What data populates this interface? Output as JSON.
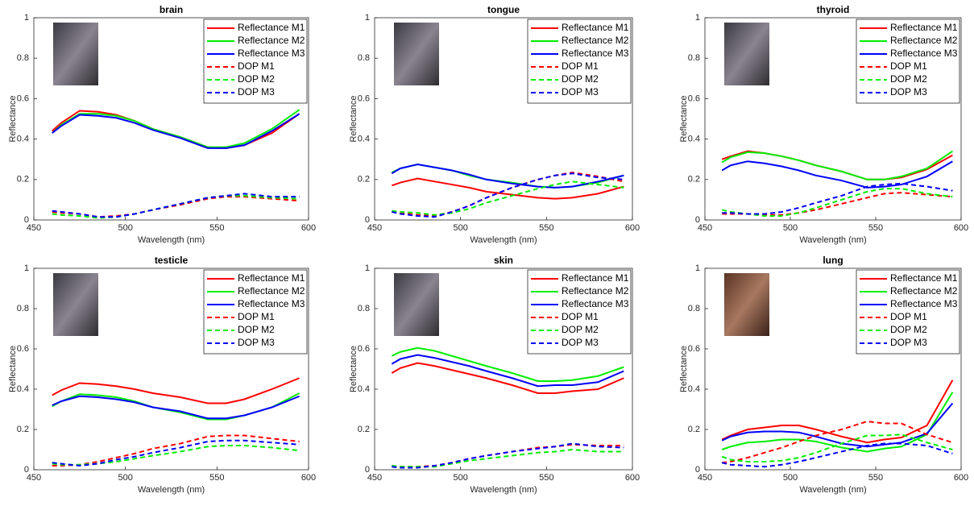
{
  "chart_data": [
    {
      "type": "line",
      "title": "brain",
      "xlabel": "Wavelength (nm)",
      "ylabel": "Reflectance",
      "x": [
        460,
        465,
        475,
        485,
        495,
        505,
        515,
        530,
        545,
        555,
        565,
        580,
        595
      ],
      "xlim": [
        450,
        600
      ],
      "xticks": [
        450,
        500,
        550,
        600
      ],
      "ylim": [
        0,
        1
      ],
      "yticks": [
        0,
        0.2,
        0.4,
        0.6,
        0.8,
        1
      ],
      "legend": "upper right",
      "series": [
        {
          "name": "Reflectance M1",
          "color": "#ff0000",
          "style": "solid",
          "values": [
            0.44,
            0.48,
            0.54,
            0.535,
            0.52,
            0.49,
            0.45,
            0.41,
            0.36,
            0.355,
            0.37,
            0.43,
            0.525
          ]
        },
        {
          "name": "Reflectance M2",
          "color": "#00ee00",
          "style": "solid",
          "values": [
            0.43,
            0.47,
            0.525,
            0.525,
            0.515,
            0.49,
            0.45,
            0.41,
            0.36,
            0.36,
            0.38,
            0.45,
            0.545
          ]
        },
        {
          "name": "Reflectance M3",
          "color": "#0000ff",
          "style": "solid",
          "values": [
            0.43,
            0.465,
            0.52,
            0.515,
            0.505,
            0.48,
            0.445,
            0.405,
            0.355,
            0.355,
            0.37,
            0.44,
            0.525
          ]
        },
        {
          "name": "DOP M1",
          "color": "#ff0000",
          "style": "dashed",
          "values": [
            0.04,
            0.035,
            0.03,
            0.015,
            0.02,
            0.03,
            0.05,
            0.075,
            0.105,
            0.115,
            0.115,
            0.105,
            0.095
          ]
        },
        {
          "name": "DOP M2",
          "color": "#00ee00",
          "style": "dashed",
          "values": [
            0.03,
            0.025,
            0.02,
            0.01,
            0.015,
            0.03,
            0.05,
            0.08,
            0.11,
            0.12,
            0.12,
            0.11,
            0.105
          ]
        },
        {
          "name": "DOP M3",
          "color": "#0000ff",
          "style": "dashed",
          "values": [
            0.045,
            0.04,
            0.03,
            0.015,
            0.015,
            0.03,
            0.05,
            0.08,
            0.11,
            0.12,
            0.13,
            0.115,
            0.115
          ]
        }
      ]
    },
    {
      "type": "line",
      "title": "tongue",
      "xlabel": "Wavelength (nm)",
      "ylabel": "Reflectance",
      "x": [
        460,
        465,
        475,
        485,
        495,
        505,
        515,
        530,
        545,
        555,
        565,
        580,
        595
      ],
      "xlim": [
        450,
        600
      ],
      "xticks": [
        450,
        500,
        550,
        600
      ],
      "ylim": [
        0,
        1
      ],
      "yticks": [
        0,
        0.2,
        0.4,
        0.6,
        0.8,
        1
      ],
      "legend": "upper right",
      "series": [
        {
          "name": "Reflectance M1",
          "color": "#ff0000",
          "style": "solid",
          "values": [
            0.17,
            0.185,
            0.205,
            0.19,
            0.175,
            0.16,
            0.14,
            0.125,
            0.11,
            0.105,
            0.11,
            0.13,
            0.165
          ]
        },
        {
          "name": "Reflectance M2",
          "color": "#00ee00",
          "style": "solid",
          "values": [
            0.235,
            0.255,
            0.275,
            0.26,
            0.245,
            0.22,
            0.2,
            0.185,
            0.165,
            0.16,
            0.165,
            0.185,
            0.22
          ]
        },
        {
          "name": "Reflectance M3",
          "color": "#0000ff",
          "style": "solid",
          "values": [
            0.23,
            0.255,
            0.275,
            0.26,
            0.245,
            0.225,
            0.2,
            0.18,
            0.165,
            0.16,
            0.165,
            0.19,
            0.22
          ]
        },
        {
          "name": "DOP M1",
          "color": "#ff0000",
          "style": "dashed",
          "values": [
            0.04,
            0.035,
            0.025,
            0.02,
            0.04,
            0.07,
            0.11,
            0.16,
            0.2,
            0.22,
            0.235,
            0.215,
            0.19
          ]
        },
        {
          "name": "DOP M2",
          "color": "#00ee00",
          "style": "dashed",
          "values": [
            0.045,
            0.04,
            0.035,
            0.025,
            0.035,
            0.055,
            0.085,
            0.12,
            0.155,
            0.175,
            0.19,
            0.175,
            0.16
          ]
        },
        {
          "name": "DOP M3",
          "color": "#0000ff",
          "style": "dashed",
          "values": [
            0.04,
            0.03,
            0.02,
            0.015,
            0.04,
            0.07,
            0.11,
            0.16,
            0.2,
            0.22,
            0.23,
            0.21,
            0.2
          ]
        }
      ]
    },
    {
      "type": "line",
      "title": "thyroid",
      "xlabel": "Wavelength (nm)",
      "ylabel": "Reflectance",
      "x": [
        460,
        465,
        475,
        485,
        495,
        505,
        515,
        530,
        545,
        555,
        565,
        580,
        595
      ],
      "xlim": [
        450,
        600
      ],
      "xticks": [
        450,
        500,
        550,
        600
      ],
      "ylim": [
        0,
        1
      ],
      "yticks": [
        0,
        0.2,
        0.4,
        0.6,
        0.8,
        1
      ],
      "legend": "upper right",
      "series": [
        {
          "name": "Reflectance M1",
          "color": "#ff0000",
          "style": "solid",
          "values": [
            0.3,
            0.315,
            0.34,
            0.33,
            0.315,
            0.295,
            0.27,
            0.24,
            0.2,
            0.2,
            0.21,
            0.25,
            0.32
          ]
        },
        {
          "name": "Reflectance M2",
          "color": "#00ee00",
          "style": "solid",
          "values": [
            0.285,
            0.31,
            0.335,
            0.33,
            0.315,
            0.295,
            0.27,
            0.24,
            0.2,
            0.2,
            0.215,
            0.255,
            0.34
          ]
        },
        {
          "name": "Reflectance M3",
          "color": "#0000ff",
          "style": "solid",
          "values": [
            0.245,
            0.27,
            0.29,
            0.28,
            0.265,
            0.245,
            0.22,
            0.195,
            0.16,
            0.165,
            0.175,
            0.215,
            0.29
          ]
        },
        {
          "name": "DOP M1",
          "color": "#ff0000",
          "style": "dashed",
          "values": [
            0.03,
            0.03,
            0.03,
            0.025,
            0.025,
            0.035,
            0.05,
            0.08,
            0.11,
            0.13,
            0.135,
            0.125,
            0.115
          ]
        },
        {
          "name": "DOP M2",
          "color": "#00ee00",
          "style": "dashed",
          "values": [
            0.05,
            0.04,
            0.03,
            0.02,
            0.02,
            0.035,
            0.06,
            0.1,
            0.14,
            0.155,
            0.155,
            0.13,
            0.115
          ]
        },
        {
          "name": "DOP M3",
          "color": "#0000ff",
          "style": "dashed",
          "values": [
            0.035,
            0.035,
            0.03,
            0.03,
            0.04,
            0.06,
            0.085,
            0.12,
            0.165,
            0.175,
            0.18,
            0.165,
            0.145
          ]
        }
      ]
    },
    {
      "type": "line",
      "title": "testicle",
      "xlabel": "Wavelength (nm)",
      "ylabel": "Reflectance",
      "x": [
        460,
        465,
        475,
        485,
        495,
        505,
        515,
        530,
        545,
        555,
        565,
        580,
        595
      ],
      "xlim": [
        450,
        600
      ],
      "xticks": [
        450,
        500,
        550,
        600
      ],
      "ylim": [
        0,
        1
      ],
      "yticks": [
        0,
        0.2,
        0.4,
        0.6,
        0.8,
        1
      ],
      "legend": "upper right",
      "series": [
        {
          "name": "Reflectance M1",
          "color": "#ff0000",
          "style": "solid",
          "values": [
            0.37,
            0.395,
            0.43,
            0.425,
            0.415,
            0.4,
            0.38,
            0.36,
            0.33,
            0.33,
            0.35,
            0.4,
            0.455
          ]
        },
        {
          "name": "Reflectance M2",
          "color": "#00ee00",
          "style": "solid",
          "values": [
            0.315,
            0.34,
            0.375,
            0.37,
            0.36,
            0.34,
            0.31,
            0.285,
            0.25,
            0.25,
            0.27,
            0.31,
            0.38
          ]
        },
        {
          "name": "Reflectance M3",
          "color": "#0000ff",
          "style": "solid",
          "values": [
            0.32,
            0.34,
            0.365,
            0.36,
            0.35,
            0.335,
            0.31,
            0.29,
            0.255,
            0.255,
            0.27,
            0.31,
            0.365
          ]
        },
        {
          "name": "DOP M1",
          "color": "#ff0000",
          "style": "dashed",
          "values": [
            0.02,
            0.02,
            0.025,
            0.04,
            0.06,
            0.08,
            0.105,
            0.13,
            0.165,
            0.17,
            0.17,
            0.155,
            0.14
          ]
        },
        {
          "name": "DOP M2",
          "color": "#00ee00",
          "style": "dashed",
          "values": [
            0.03,
            0.025,
            0.025,
            0.03,
            0.04,
            0.055,
            0.07,
            0.09,
            0.115,
            0.12,
            0.12,
            0.11,
            0.095
          ]
        },
        {
          "name": "DOP M3",
          "color": "#0000ff",
          "style": "dashed",
          "values": [
            0.035,
            0.03,
            0.02,
            0.03,
            0.05,
            0.065,
            0.085,
            0.11,
            0.14,
            0.145,
            0.145,
            0.135,
            0.125
          ]
        }
      ]
    },
    {
      "type": "line",
      "title": "skin",
      "xlabel": "Wavelength (nm)",
      "ylabel": "Reflectance",
      "x": [
        460,
        465,
        475,
        485,
        495,
        505,
        515,
        530,
        545,
        555,
        565,
        580,
        595
      ],
      "xlim": [
        450,
        600
      ],
      "xticks": [
        450,
        500,
        550,
        600
      ],
      "ylim": [
        0,
        1
      ],
      "yticks": [
        0,
        0.2,
        0.4,
        0.6,
        0.8,
        1
      ],
      "legend": "upper right",
      "series": [
        {
          "name": "Reflectance M1",
          "color": "#ff0000",
          "style": "solid",
          "values": [
            0.48,
            0.505,
            0.53,
            0.515,
            0.495,
            0.475,
            0.455,
            0.42,
            0.38,
            0.38,
            0.39,
            0.4,
            0.455
          ]
        },
        {
          "name": "Reflectance M2",
          "color": "#00ee00",
          "style": "solid",
          "values": [
            0.565,
            0.585,
            0.605,
            0.59,
            0.565,
            0.54,
            0.515,
            0.48,
            0.44,
            0.44,
            0.445,
            0.465,
            0.51
          ]
        },
        {
          "name": "Reflectance M3",
          "color": "#0000ff",
          "style": "solid",
          "values": [
            0.525,
            0.55,
            0.57,
            0.555,
            0.535,
            0.515,
            0.49,
            0.455,
            0.415,
            0.42,
            0.42,
            0.435,
            0.49
          ]
        },
        {
          "name": "DOP M1",
          "color": "#ff0000",
          "style": "dashed",
          "values": [
            0.02,
            0.015,
            0.015,
            0.02,
            0.035,
            0.055,
            0.07,
            0.09,
            0.11,
            0.115,
            0.125,
            0.12,
            0.12
          ]
        },
        {
          "name": "DOP M2",
          "color": "#00ee00",
          "style": "dashed",
          "values": [
            0.02,
            0.015,
            0.015,
            0.015,
            0.03,
            0.045,
            0.055,
            0.07,
            0.085,
            0.09,
            0.1,
            0.09,
            0.09
          ]
        },
        {
          "name": "DOP M3",
          "color": "#0000ff",
          "style": "dashed",
          "values": [
            0.015,
            0.01,
            0.01,
            0.02,
            0.035,
            0.055,
            0.07,
            0.09,
            0.105,
            0.115,
            0.13,
            0.115,
            0.11
          ]
        }
      ]
    },
    {
      "type": "line",
      "title": "lung",
      "xlabel": "Wavelength (nm)",
      "ylabel": "Reflectance",
      "x": [
        460,
        465,
        475,
        485,
        495,
        505,
        515,
        530,
        545,
        555,
        565,
        580,
        595
      ],
      "xlim": [
        450,
        600
      ],
      "xticks": [
        450,
        500,
        550,
        600
      ],
      "ylim": [
        0,
        1
      ],
      "yticks": [
        0,
        0.2,
        0.4,
        0.6,
        0.8,
        1
      ],
      "legend": "upper right",
      "series": [
        {
          "name": "Reflectance M1",
          "color": "#ff0000",
          "style": "solid",
          "values": [
            0.15,
            0.17,
            0.2,
            0.21,
            0.22,
            0.22,
            0.2,
            0.165,
            0.135,
            0.15,
            0.16,
            0.22,
            0.445
          ]
        },
        {
          "name": "Reflectance M2",
          "color": "#00ee00",
          "style": "solid",
          "values": [
            0.1,
            0.115,
            0.135,
            0.14,
            0.15,
            0.15,
            0.14,
            0.11,
            0.09,
            0.105,
            0.115,
            0.175,
            0.385
          ]
        },
        {
          "name": "Reflectance M3",
          "color": "#0000ff",
          "style": "solid",
          "values": [
            0.145,
            0.165,
            0.185,
            0.19,
            0.19,
            0.185,
            0.165,
            0.13,
            0.115,
            0.125,
            0.135,
            0.18,
            0.33
          ]
        },
        {
          "name": "DOP M1",
          "color": "#ff0000",
          "style": "dashed",
          "values": [
            0.035,
            0.04,
            0.06,
            0.085,
            0.11,
            0.14,
            0.17,
            0.2,
            0.24,
            0.23,
            0.23,
            0.175,
            0.135
          ]
        },
        {
          "name": "DOP M2",
          "color": "#00ee00",
          "style": "dashed",
          "values": [
            0.065,
            0.05,
            0.04,
            0.04,
            0.045,
            0.06,
            0.085,
            0.13,
            0.17,
            0.17,
            0.175,
            0.135,
            0.1
          ]
        },
        {
          "name": "DOP M3",
          "color": "#0000ff",
          "style": "dashed",
          "values": [
            0.035,
            0.025,
            0.02,
            0.015,
            0.025,
            0.04,
            0.06,
            0.09,
            0.12,
            0.13,
            0.13,
            0.12,
            0.08
          ]
        }
      ]
    }
  ]
}
